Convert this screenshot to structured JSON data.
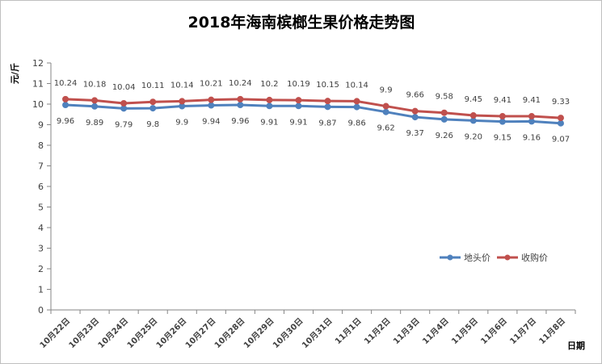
{
  "chart_data": {
    "type": "line",
    "title": "2018年海南槟榔生果价格走势图",
    "ylabel": "元/斤",
    "xlabel": "日期",
    "ylim": [
      0,
      12
    ],
    "yticks": [
      "0",
      "1",
      "2",
      "3",
      "4",
      "5",
      "6",
      "7",
      "8",
      "9",
      "10",
      "11",
      "12"
    ],
    "grid": false,
    "legend_position": "right",
    "categories": [
      "10月22日",
      "10月23日",
      "10月24日",
      "10月25日",
      "10月26日",
      "10月27日",
      "10月28日",
      "10月29日",
      "10月30日",
      "10月31日",
      "11月1日",
      "11月2日",
      "11月3日",
      "11月4日",
      "11月5日",
      "11月6日",
      "11月7日",
      "11月8日"
    ],
    "series": [
      {
        "name": "地头价",
        "color": "#4f81bd",
        "values": [
          9.96,
          9.89,
          9.79,
          9.8,
          9.9,
          9.94,
          9.96,
          9.91,
          9.91,
          9.87,
          9.86,
          9.62,
          9.37,
          9.26,
          9.2,
          9.15,
          9.16,
          9.07
        ],
        "labels": [
          "9.96",
          "9.89",
          "9.79",
          "9.8",
          "9.9",
          "9.94",
          "9.96",
          "9.91",
          "9.91",
          "9.87",
          "9.86",
          "9.62",
          "9.37",
          "9.26",
          "9.20",
          "9.15",
          "9.16",
          "9.07"
        ]
      },
      {
        "name": "收购价",
        "color": "#c0504d",
        "values": [
          10.24,
          10.18,
          10.04,
          10.11,
          10.14,
          10.21,
          10.24,
          10.2,
          10.19,
          10.15,
          10.14,
          9.9,
          9.66,
          9.58,
          9.45,
          9.41,
          9.41,
          9.33
        ],
        "labels": [
          "10.24",
          "10.18",
          "10.04",
          "10.11",
          "10.14",
          "10.21",
          "10.24",
          "10.2",
          "10.19",
          "10.15",
          "10.14",
          "9.9",
          "9.66",
          "9.58",
          "9.45",
          "9.41",
          "9.41",
          "9.33"
        ]
      }
    ]
  }
}
